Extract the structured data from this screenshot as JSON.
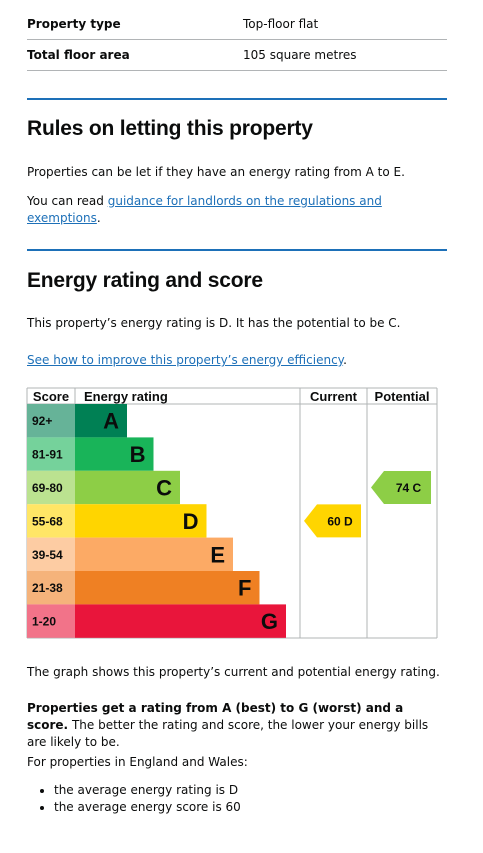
{
  "summary_list": [
    {
      "key": "Property type",
      "value": "Top-floor flat"
    },
    {
      "key": "Total floor area",
      "value": "105 square metres"
    }
  ],
  "letting": {
    "heading": "Rules on letting this property",
    "intro": "Properties can be let if they have an energy rating from A to E.",
    "guidance_prefix": "You can read ",
    "guidance_link": "guidance for landlords on the regulations and exemptions",
    "guidance_suffix": "."
  },
  "energy": {
    "heading": "Energy rating and score",
    "statement": "This property’s energy rating is D. It has the potential to be C.",
    "improve_link": "See how to improve this property’s energy efficiency",
    "improve_suffix": ".",
    "graph_caption": "The graph shows this property’s current and potential energy rating.",
    "rating_bold": "Properties get a rating from A (best) to G (worst) and a score.",
    "rating_rest": " The better the rating and score, the lower your energy bills are likely to be.",
    "average_intro": "For properties in England and Wales:",
    "average_points": [
      "the average energy rating is D",
      "the average energy score is 60"
    ]
  },
  "epc_chart": {
    "headers": {
      "score": "Score",
      "rating": "Energy rating",
      "current": "Current",
      "potential": "Potential"
    },
    "bands": [
      {
        "letter": "A",
        "range": "92+",
        "color": "#008054",
        "tint": "#66b398"
      },
      {
        "letter": "B",
        "range": "81-91",
        "color": "#19b459",
        "tint": "#75d29b"
      },
      {
        "letter": "C",
        "range": "69-80",
        "color": "#8dce46",
        "tint": "#bbe290"
      },
      {
        "letter": "D",
        "range": "55-68",
        "color": "#ffd500",
        "tint": "#ffe666"
      },
      {
        "letter": "E",
        "range": "39-54",
        "color": "#fcaa65",
        "tint": "#fdcca3"
      },
      {
        "letter": "F",
        "range": "21-38",
        "color": "#ef8023",
        "tint": "#f5b37b"
      },
      {
        "letter": "G",
        "range": "1-20",
        "color": "#e9153b",
        "tint": "#f27389"
      }
    ],
    "current": {
      "score": 60,
      "band": "D",
      "label": "60  D",
      "color": "#ffd500"
    },
    "potential": {
      "score": 74,
      "band": "C",
      "label": "74  C",
      "color": "#8dce46"
    }
  }
}
